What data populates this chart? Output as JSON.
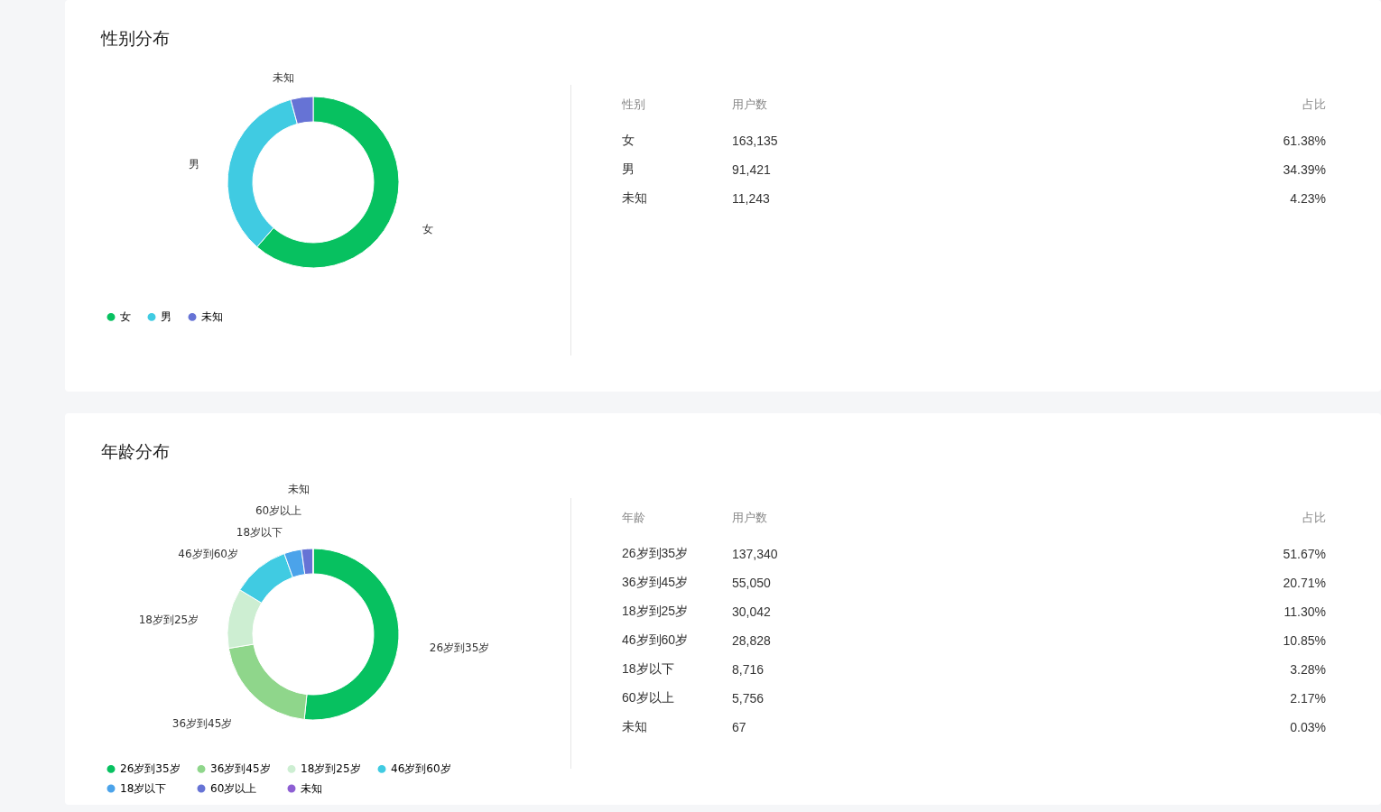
{
  "chart_data": [
    {
      "type": "donut",
      "title": "性别分布",
      "categories": [
        "女",
        "男",
        "未知"
      ],
      "values": [
        61.38,
        34.39,
        4.23
      ],
      "colors": [
        "#07c160",
        "#40cbe2",
        "#6673d5"
      ],
      "legend": "bottom"
    },
    {
      "type": "other",
      "annotations": [
        "性别",
        "用户数",
        "占比",
        "女",
        "163,135",
        "61.38%",
        "男",
        "91,421",
        "34.39%",
        "未知",
        "11,243",
        "4.23%"
      ]
    },
    {
      "type": "donut",
      "title": "年龄分布",
      "categories": [
        "26岁到35岁",
        "36岁到45岁",
        "18岁到25岁",
        "46岁到60岁",
        "18岁以下",
        "60岁以上",
        "未知"
      ],
      "values": [
        51.67,
        20.71,
        11.3,
        10.85,
        3.28,
        2.17,
        0.03
      ],
      "colors": [
        "#07c160",
        "#8fd68b",
        "#cdeed2",
        "#40cbe2",
        "#4ba3ea",
        "#6673d5",
        "#8d5fd3"
      ],
      "legend": "bottom"
    },
    {
      "type": "other",
      "annotations": [
        "年龄",
        "用户数",
        "占比",
        "26岁到35岁",
        "137,340",
        "51.67%",
        "36岁到45岁",
        "55,050",
        "20.71%",
        "18岁到25岁",
        "30,042",
        "11.30%",
        "46岁到60岁",
        "28,828",
        "10.85%",
        "18岁以下",
        "8,716",
        "3.28%",
        "60岁以上",
        "5,756",
        "2.17%",
        "未知",
        "67",
        "0.03%"
      ]
    }
  ]
}
